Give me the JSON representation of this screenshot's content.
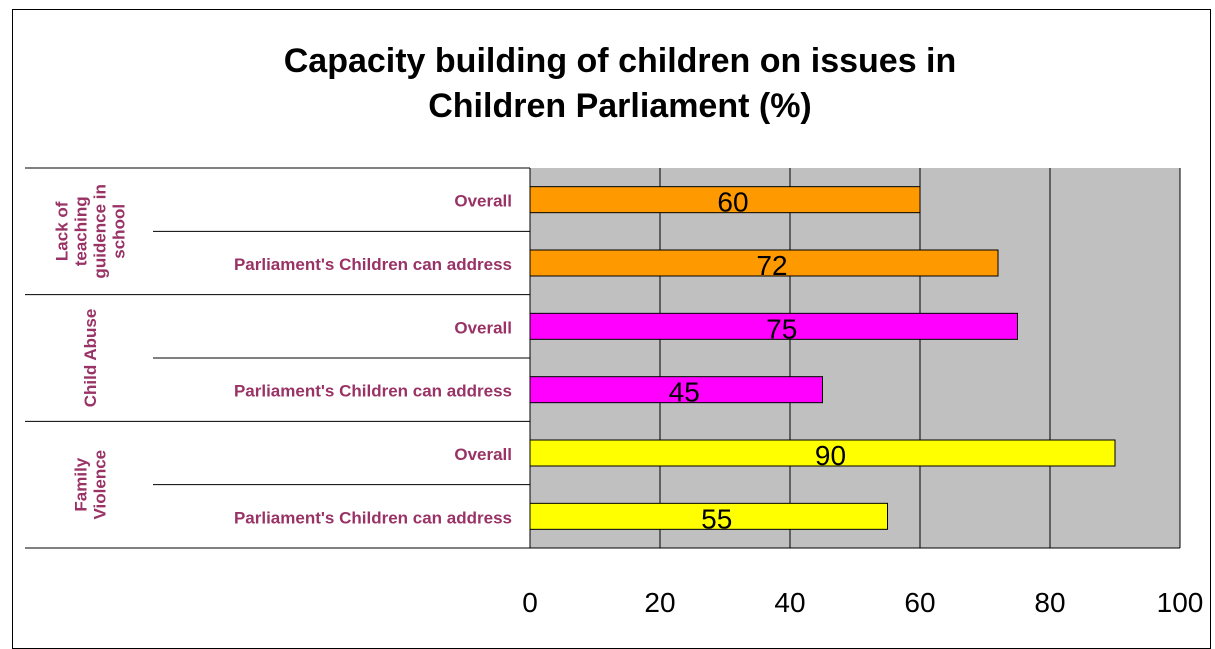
{
  "chart_data": {
    "type": "bar",
    "orientation": "horizontal",
    "title_lines": [
      "Capacity building of children on issues in",
      "Children Parliament (%)"
    ],
    "groups": [
      {
        "name": "Lack of teaching guidence in school",
        "label_lines": [
          "Lack of",
          "teaching",
          "guidence in",
          "school"
        ],
        "color": "#FF9900"
      },
      {
        "name": "Child Abuse",
        "label_lines": [
          "Child Abuse"
        ],
        "color": "#FF00FF"
      },
      {
        "name": "Family Violence",
        "label_lines": [
          "Family",
          "Violence"
        ],
        "color": "#FFFF00"
      }
    ],
    "bars": [
      {
        "group": 0,
        "category": "Overall",
        "value": 60
      },
      {
        "group": 0,
        "category": "Parliament's Children can address",
        "value": 72
      },
      {
        "group": 1,
        "category": "Overall",
        "value": 75
      },
      {
        "group": 1,
        "category": "Parliament's Children can address",
        "value": 45
      },
      {
        "group": 2,
        "category": "Overall",
        "value": 90
      },
      {
        "group": 2,
        "category": "Parliament's Children can address",
        "value": 55
      }
    ],
    "xlim": [
      0,
      100
    ],
    "xticks": [
      "0",
      "20",
      "40",
      "60",
      "80",
      "100"
    ],
    "grid": true,
    "plot_background": "#C0C0C0",
    "category_label_color": "#993366",
    "legend": "none"
  }
}
